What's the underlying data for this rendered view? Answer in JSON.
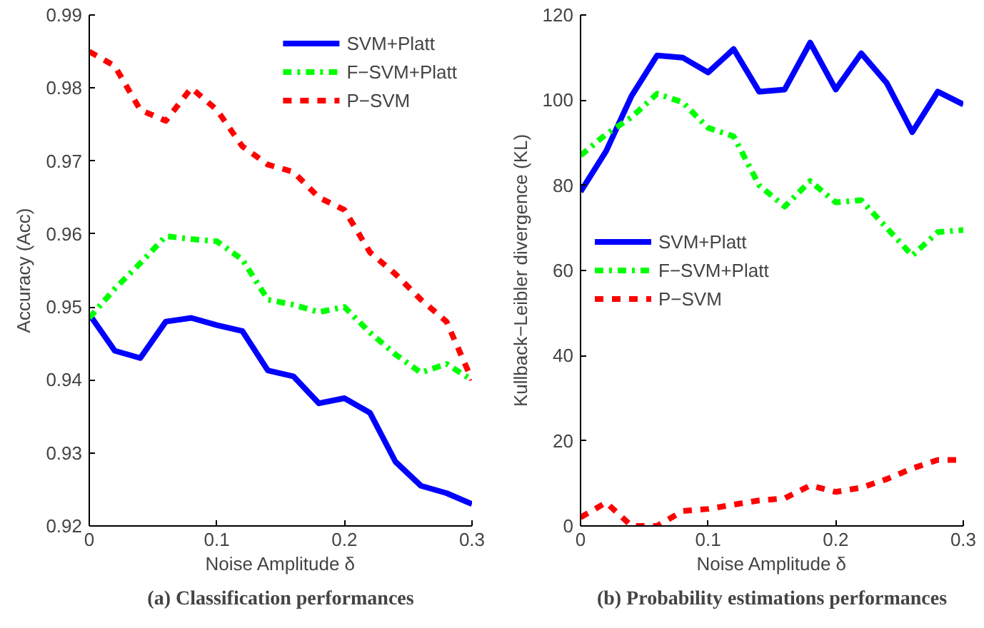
{
  "chart_data": [
    {
      "type": "line",
      "xlabel": "Noise Amplitude δ",
      "ylabel": "Accuracy (Acc)",
      "annotations": [
        "(a) Classification performances"
      ],
      "x": [
        0,
        0.02,
        0.04,
        0.06,
        0.08,
        0.1,
        0.12,
        0.14,
        0.16,
        0.18,
        0.2,
        0.22,
        0.24,
        0.26,
        0.28,
        0.3
      ],
      "xlim": [
        0,
        0.3
      ],
      "xticks": [
        0,
        0.1,
        0.2,
        0.3
      ],
      "ylim": [
        0.92,
        0.99
      ],
      "yticks": [
        0.92,
        0.93,
        0.94,
        0.95,
        0.96,
        0.97,
        0.98,
        0.99
      ],
      "grid": false,
      "legend": "top right",
      "series": [
        {
          "name": "SVM+Platt",
          "color": "#0000ff",
          "line_style": "solid",
          "values": [
            0.949,
            0.944,
            0.943,
            0.948,
            0.9485,
            0.9475,
            0.9467,
            0.9413,
            0.9405,
            0.9368,
            0.9375,
            0.9355,
            0.9288,
            0.9255,
            0.9245,
            0.923
          ]
        },
        {
          "name": "F−SVM+Platt",
          "color": "#00ff00",
          "line_style": "dashdot",
          "values": [
            0.9485,
            0.9525,
            0.956,
            0.9597,
            0.9593,
            0.959,
            0.9565,
            0.951,
            0.9503,
            0.9493,
            0.95,
            0.9465,
            0.9435,
            0.941,
            0.9422,
            0.94
          ]
        },
        {
          "name": "P−SVM",
          "color": "#ff0000",
          "line_style": "dashed",
          "values": [
            0.985,
            0.983,
            0.977,
            0.9755,
            0.98,
            0.977,
            0.972,
            0.9695,
            0.9685,
            0.965,
            0.9633,
            0.9575,
            0.9545,
            0.951,
            0.948,
            0.94
          ]
        }
      ]
    },
    {
      "type": "line",
      "xlabel": "Noise Amplitude δ",
      "ylabel": "Kullback−Leibler divergence (KL)",
      "annotations": [
        "(b) Probability estimations performances"
      ],
      "x": [
        0,
        0.02,
        0.04,
        0.06,
        0.08,
        0.1,
        0.12,
        0.14,
        0.16,
        0.18,
        0.2,
        0.22,
        0.24,
        0.26,
        0.28,
        0.3
      ],
      "xlim": [
        0,
        0.3
      ],
      "xticks": [
        0,
        0.1,
        0.2,
        0.3
      ],
      "ylim": [
        0,
        120
      ],
      "yticks": [
        0,
        20,
        40,
        60,
        80,
        100,
        120
      ],
      "grid": false,
      "legend": "left",
      "series": [
        {
          "name": "SVM+Platt",
          "color": "#0000ff",
          "line_style": "solid",
          "values": [
            78.5,
            88,
            101,
            110.5,
            110,
            106.5,
            112,
            102,
            102.5,
            113.5,
            102.5,
            111,
            104,
            92.5,
            102,
            99
          ]
        },
        {
          "name": "F−SVM+Platt",
          "color": "#00ff00",
          "line_style": "dashdot",
          "values": [
            87,
            92,
            96,
            101.5,
            99.5,
            93.5,
            91.5,
            80,
            75,
            81,
            76,
            76.5,
            70,
            63.5,
            69,
            69.5
          ]
        },
        {
          "name": "P−SVM",
          "color": "#ff0000",
          "line_style": "dashed",
          "values": [
            2,
            5.5,
            0,
            0,
            3.5,
            4,
            5,
            6,
            6.5,
            9.5,
            8,
            9,
            11,
            13.5,
            15.5,
            15.5
          ]
        }
      ]
    }
  ]
}
